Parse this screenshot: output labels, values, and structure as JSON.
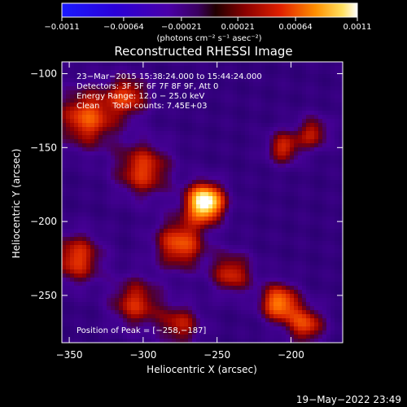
{
  "chart_data": {
    "type": "heatmap",
    "title": "Reconstructed RHESSI Image",
    "xlabel": "Heliocentric X (arcsec)",
    "ylabel": "Heliocentric Y (arcsec)",
    "xlim": [
      -355,
      -165
    ],
    "ylim": [
      -282,
      -92
    ],
    "x_ticks": [
      -350,
      -300,
      -250,
      -200
    ],
    "x_tick_labels": [
      "−350",
      "−300",
      "−250",
      "−200"
    ],
    "y_ticks": [
      -100,
      -150,
      -200,
      -250
    ],
    "y_tick_labels": [
      "−100",
      "−150",
      "−200",
      "−250"
    ],
    "colorbar": {
      "min": -0.0011,
      "max": 0.0011,
      "ticks": [
        -0.0011,
        -0.00064,
        -0.00021,
        0.00021,
        0.00064,
        0.0011
      ],
      "tick_labels": [
        "−0.0011",
        "−0.00064",
        "−0.00021",
        "0.00021",
        "0.00064",
        "0.0011"
      ],
      "unit_label": "(photons cm⁻² s⁻¹ asec⁻²)"
    },
    "annotations": [
      "23−Mar−2015 15:38:24.000 to 15:44:24.000",
      "Detectors: 3F 5F 6F 7F 8F 9F, Att 0",
      "Energy Range: 12.0 − 25.0 keV",
      "Clean     Total counts: 7.45E+03"
    ],
    "peak_label": "Position of Peak = [−258,−187]",
    "peak_position": [
      -258,
      -187
    ],
    "sources": [
      {
        "x": -258,
        "y": -187,
        "level": 1.0,
        "sigma": 9
      },
      {
        "x": -338,
        "y": -130,
        "level": 0.55,
        "sigma": 14
      },
      {
        "x": -310,
        "y": -115,
        "level": 0.45,
        "sigma": 10
      },
      {
        "x": -300,
        "y": -165,
        "level": 0.5,
        "sigma": 13
      },
      {
        "x": -275,
        "y": -215,
        "level": 0.55,
        "sigma": 12
      },
      {
        "x": -240,
        "y": -235,
        "level": 0.45,
        "sigma": 10
      },
      {
        "x": -208,
        "y": -255,
        "level": 0.65,
        "sigma": 9
      },
      {
        "x": -190,
        "y": -270,
        "level": 0.5,
        "sigma": 9
      },
      {
        "x": -345,
        "y": -225,
        "level": 0.5,
        "sigma": 12
      },
      {
        "x": -305,
        "y": -255,
        "level": 0.45,
        "sigma": 12
      },
      {
        "x": -275,
        "y": -270,
        "level": 0.4,
        "sigma": 10
      },
      {
        "x": -205,
        "y": -150,
        "level": 0.45,
        "sigma": 8
      },
      {
        "x": -185,
        "y": -140,
        "level": 0.4,
        "sigma": 8
      }
    ]
  },
  "timestamp": "19−May−2022 23:49"
}
